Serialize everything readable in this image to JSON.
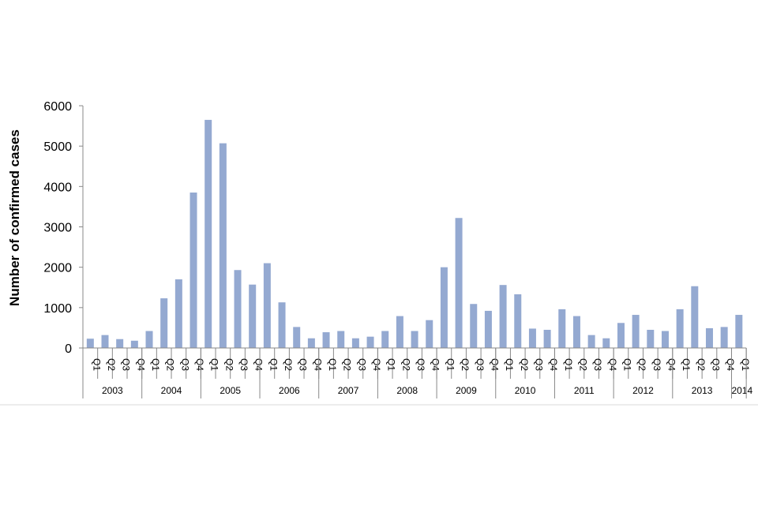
{
  "chart_data": {
    "type": "bar",
    "title": "",
    "xlabel": "",
    "ylabel": "Number of confirmed  cases",
    "ylim": [
      0,
      6000
    ],
    "yticks": [
      0,
      1000,
      2000,
      3000,
      4000,
      5000,
      6000
    ],
    "grid": false,
    "bar_color": "#94A9D1",
    "years": [
      "2003",
      "2004",
      "2005",
      "2006",
      "2007",
      "2008",
      "2009",
      "2010",
      "2011",
      "2012",
      "2013",
      "2014"
    ],
    "quarters_per_year": [
      4,
      4,
      4,
      4,
      4,
      4,
      4,
      4,
      4,
      4,
      4,
      1
    ],
    "categories": [
      "Q1",
      "Q2",
      "Q3",
      "Q4",
      "Q1",
      "Q2",
      "Q3",
      "Q4",
      "Q1",
      "Q2",
      "Q3",
      "Q4",
      "Q1",
      "Q2",
      "Q3",
      "Q4",
      "Q1",
      "Q2",
      "Q3",
      "Q4",
      "Q1",
      "Q2",
      "Q3",
      "Q4",
      "Q1",
      "Q2",
      "Q3",
      "Q4",
      "Q1",
      "Q2",
      "Q3",
      "Q4",
      "Q1",
      "Q2",
      "Q3",
      "Q4",
      "Q1",
      "Q2",
      "Q3",
      "Q4",
      "Q1",
      "Q2",
      "Q3",
      "Q4",
      "Q1"
    ],
    "values": [
      230,
      320,
      220,
      180,
      420,
      1230,
      1700,
      3850,
      5650,
      5070,
      1930,
      1570,
      2100,
      1130,
      520,
      240,
      390,
      420,
      240,
      280,
      420,
      790,
      420,
      690,
      2000,
      3220,
      1090,
      920,
      1560,
      1330,
      480,
      450,
      960,
      790,
      320,
      240,
      620,
      820,
      450,
      420,
      960,
      1530,
      490,
      520,
      820
    ]
  }
}
